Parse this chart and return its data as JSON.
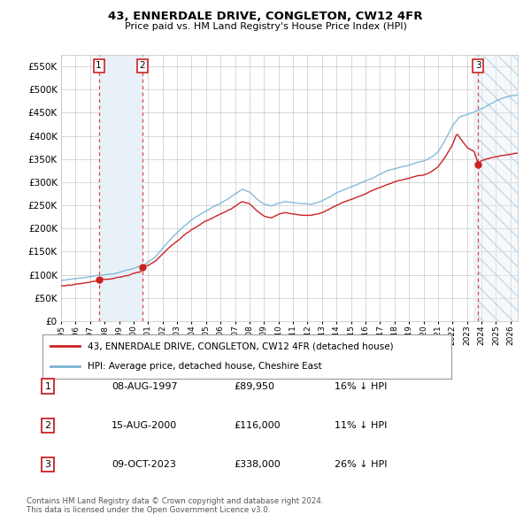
{
  "title": "43, ENNERDALE DRIVE, CONGLETON, CW12 4FR",
  "subtitle": "Price paid vs. HM Land Registry's House Price Index (HPI)",
  "legend_line1": "43, ENNERDALE DRIVE, CONGLETON, CW12 4FR (detached house)",
  "legend_line2": "HPI: Average price, detached house, Cheshire East",
  "footer1": "Contains HM Land Registry data © Crown copyright and database right 2024.",
  "footer2": "This data is licensed under the Open Government Licence v3.0.",
  "transactions": [
    {
      "num": 1,
      "date": "08-AUG-1997",
      "price": 89950,
      "pct": "16% ↓ HPI",
      "year": 1997.6
    },
    {
      "num": 2,
      "date": "15-AUG-2000",
      "price": 116000,
      "pct": "11% ↓ HPI",
      "year": 2000.6
    },
    {
      "num": 3,
      "date": "09-OCT-2023",
      "price": 338000,
      "pct": "26% ↓ HPI",
      "year": 2023.77
    }
  ],
  "hpi_color": "#7ab3d4",
  "sale_color": "#cc2222",
  "dashed_color": "#dd4444",
  "bg_highlight_color": "#e8f0f8",
  "xlim_left": 1995.0,
  "xlim_right": 2026.5,
  "ylim_bottom": 0,
  "ylim_top": 575000,
  "yticks": [
    0,
    50000,
    100000,
    150000,
    200000,
    250000,
    300000,
    350000,
    400000,
    450000,
    500000,
    550000
  ]
}
